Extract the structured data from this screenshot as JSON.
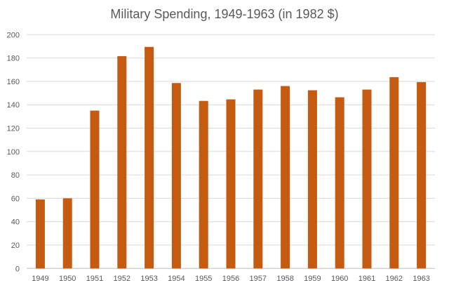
{
  "chart_data": {
    "type": "bar",
    "title": "Military Spending, 1949-1963 (in 1982 $)",
    "xlabel": "",
    "ylabel": "",
    "categories": [
      "1949",
      "1950",
      "1951",
      "1952",
      "1953",
      "1954",
      "1955",
      "1956",
      "1957",
      "1958",
      "1959",
      "1960",
      "1961",
      "1962",
      "1963"
    ],
    "values": [
      59,
      60,
      135,
      181.6,
      189.5,
      158.6,
      143.3,
      144.6,
      153,
      156,
      152.4,
      146.4,
      153,
      163.6,
      159.4
    ],
    "ylim": [
      0,
      200
    ],
    "yticks": [
      0,
      20,
      40,
      60,
      80,
      100,
      120,
      140,
      160,
      180,
      200
    ],
    "grid": true,
    "legend": "none",
    "bar_color": "#c55a11"
  }
}
